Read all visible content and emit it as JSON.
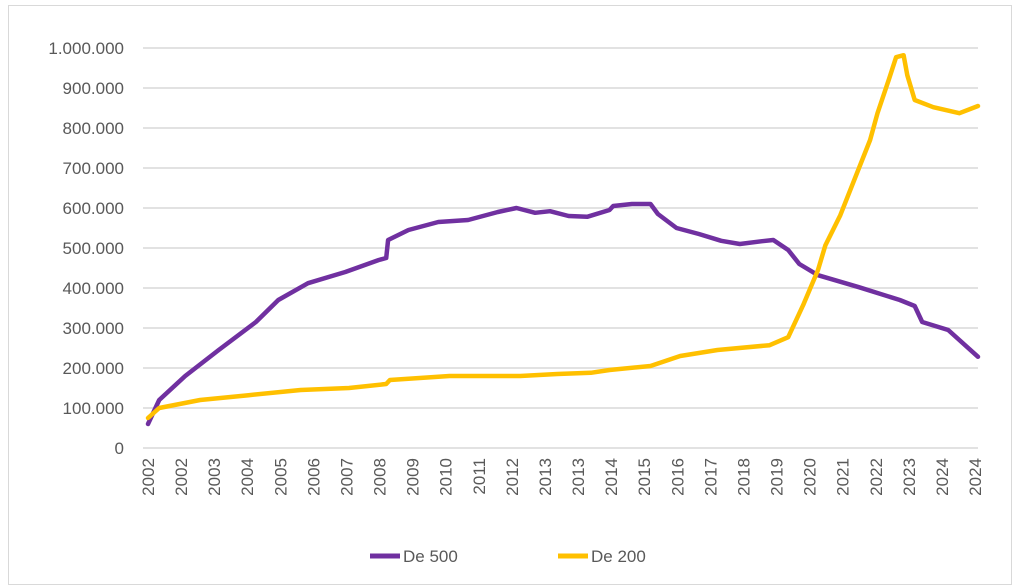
{
  "chart_data": {
    "type": "line",
    "title": "",
    "xlabel": "",
    "ylabel": "",
    "ylim": [
      0,
      1000000
    ],
    "xlim": [
      2002.0,
      2024.3
    ],
    "grid": "horizontal",
    "legend_position": "bottom",
    "y_ticks": [
      0,
      100000,
      200000,
      300000,
      400000,
      500000,
      600000,
      700000,
      800000,
      900000,
      1000000
    ],
    "y_tick_labels": [
      "0",
      "100.000",
      "200.000",
      "300.000",
      "400.000",
      "500.000",
      "600.000",
      "700.000",
      "800.000",
      "900.000",
      "1.000.000"
    ],
    "x_tick_labels": [
      "2002",
      "2002",
      "2003",
      "2004",
      "2005",
      "2006",
      "2007",
      "2008",
      "2009",
      "2010",
      "2011",
      "2012",
      "2013",
      "2013",
      "2014",
      "2015",
      "2016",
      "2017",
      "2018",
      "2019",
      "2020",
      "2021",
      "2022",
      "2023",
      "2024",
      "2024"
    ],
    "series": [
      {
        "name": "De 500",
        "color": "#7030a0",
        "points": [
          [
            2002.0,
            60000
          ],
          [
            2002.3,
            120000
          ],
          [
            2003.0,
            180000
          ],
          [
            2003.9,
            245000
          ],
          [
            2004.9,
            315000
          ],
          [
            2005.5,
            370000
          ],
          [
            2006.3,
            412000
          ],
          [
            2007.3,
            440000
          ],
          [
            2008.2,
            470000
          ],
          [
            2008.4,
            475000
          ],
          [
            2008.45,
            520000
          ],
          [
            2009.0,
            545000
          ],
          [
            2009.8,
            565000
          ],
          [
            2010.6,
            570000
          ],
          [
            2011.4,
            590000
          ],
          [
            2011.9,
            600000
          ],
          [
            2012.4,
            588000
          ],
          [
            2012.8,
            592000
          ],
          [
            2013.3,
            580000
          ],
          [
            2013.8,
            578000
          ],
          [
            2014.4,
            595000
          ],
          [
            2014.5,
            605000
          ],
          [
            2015.0,
            610000
          ],
          [
            2015.5,
            610000
          ],
          [
            2015.7,
            585000
          ],
          [
            2016.2,
            550000
          ],
          [
            2016.8,
            535000
          ],
          [
            2017.4,
            518000
          ],
          [
            2017.9,
            510000
          ],
          [
            2018.5,
            517000
          ],
          [
            2018.8,
            520000
          ],
          [
            2019.2,
            495000
          ],
          [
            2019.5,
            460000
          ],
          [
            2020.0,
            432000
          ],
          [
            2021.1,
            402000
          ],
          [
            2022.2,
            370000
          ],
          [
            2022.6,
            355000
          ],
          [
            2022.8,
            315000
          ],
          [
            2023.5,
            295000
          ],
          [
            2024.3,
            228000
          ]
        ]
      },
      {
        "name": "De 200",
        "color": "#ffc000",
        "points": [
          [
            2002.0,
            75000
          ],
          [
            2002.3,
            100000
          ],
          [
            2003.4,
            120000
          ],
          [
            2004.7,
            132000
          ],
          [
            2006.1,
            145000
          ],
          [
            2007.4,
            150000
          ],
          [
            2008.4,
            160000
          ],
          [
            2008.5,
            170000
          ],
          [
            2010.1,
            180000
          ],
          [
            2012.0,
            180000
          ],
          [
            2013.0,
            185000
          ],
          [
            2013.9,
            188000
          ],
          [
            2014.4,
            195000
          ],
          [
            2015.5,
            205000
          ],
          [
            2016.3,
            230000
          ],
          [
            2017.3,
            245000
          ],
          [
            2018.7,
            257000
          ],
          [
            2019.2,
            277000
          ],
          [
            2019.6,
            357000
          ],
          [
            2020.0,
            445000
          ],
          [
            2020.2,
            507000
          ],
          [
            2020.6,
            582000
          ],
          [
            2021.4,
            770000
          ],
          [
            2021.6,
            837000
          ],
          [
            2021.9,
            920000
          ],
          [
            2022.1,
            977000
          ],
          [
            2022.3,
            982000
          ],
          [
            2022.4,
            932000
          ],
          [
            2022.6,
            870000
          ],
          [
            2023.1,
            852000
          ],
          [
            2023.8,
            837000
          ],
          [
            2024.3,
            855000
          ]
        ]
      }
    ]
  }
}
